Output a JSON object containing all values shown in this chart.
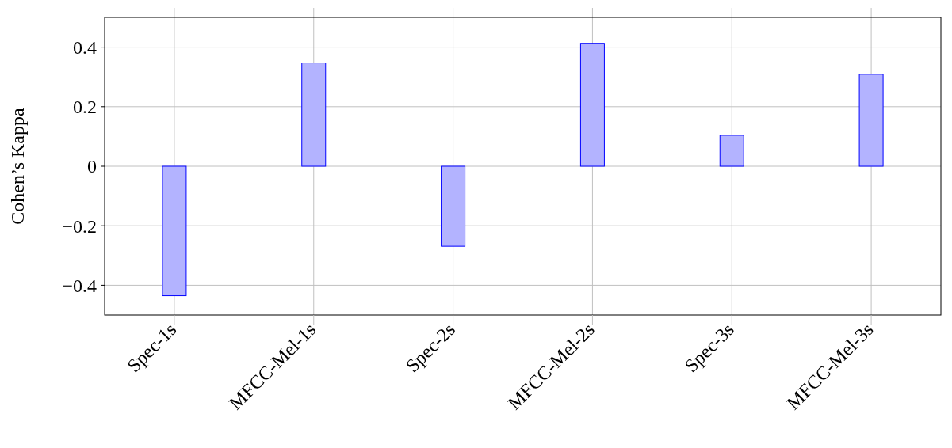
{
  "chart_data": {
    "type": "bar",
    "ylabel": "Cohen’s Kappa",
    "categories": [
      "Spec-1s",
      "MFCC-Mel-1s",
      "Spec-2s",
      "MFCC-Mel-2s",
      "Spec-3s",
      "MFCC-Mel-3s"
    ],
    "values": [
      -0.435,
      0.347,
      -0.269,
      0.413,
      0.104,
      0.309
    ],
    "color": "#b3b3ff",
    "ylim": [
      -0.5,
      0.5
    ],
    "yticks": [
      {
        "value": -0.4,
        "label": "−0.4"
      },
      {
        "value": -0.2,
        "label": "−0.2"
      },
      0,
      0.2,
      0.4
    ],
    "grid": true
  }
}
